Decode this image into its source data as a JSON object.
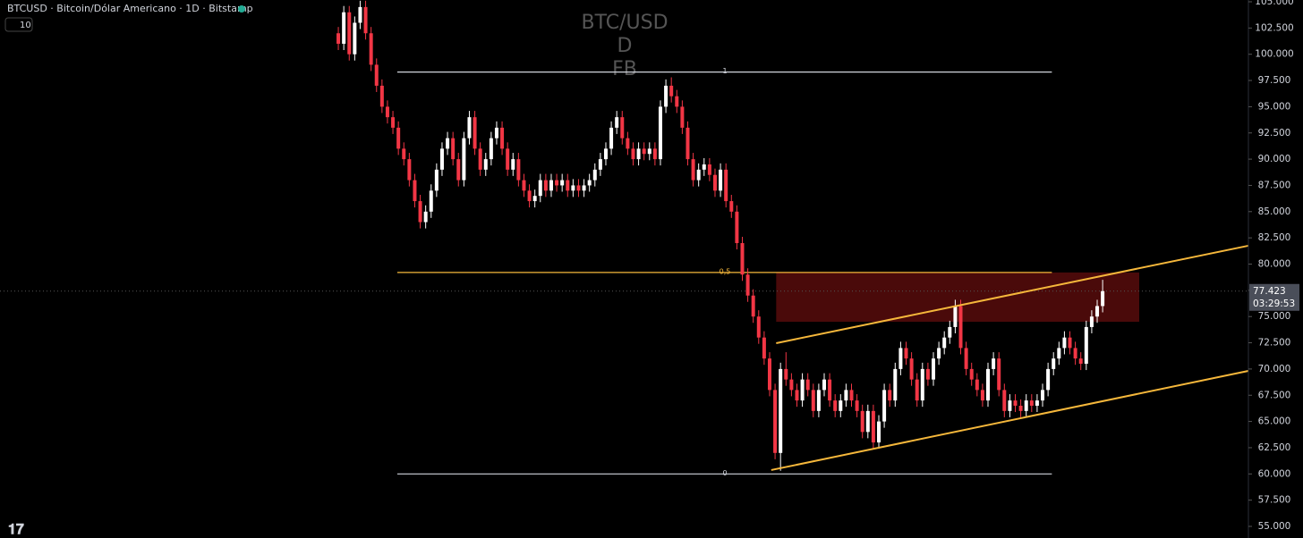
{
  "chart_data": {
    "type": "candlestick",
    "title": "BTCUSD · Bitcoin/Dólar Americano · 1D · Bitstamp",
    "indicator": "10",
    "watermark": [
      "BTC/USD",
      "D",
      "FB"
    ],
    "up_color": "#ffffff",
    "down_color": "#f23645",
    "xlim": [
      -0.5,
      166.7
    ],
    "ylim": [
      55000,
      105000
    ],
    "yticks": [
      {
        "value": 105000,
        "label": "105.000"
      },
      {
        "value": 102500,
        "label": "102.500"
      },
      {
        "value": 100000,
        "label": "100.000"
      },
      {
        "value": 97500,
        "label": "97.500"
      },
      {
        "value": 95000,
        "label": "95.000"
      },
      {
        "value": 92500,
        "label": "92.500"
      },
      {
        "value": 90000,
        "label": "90.000"
      },
      {
        "value": 87500,
        "label": "87.500"
      },
      {
        "value": 85000,
        "label": "85.000"
      },
      {
        "value": 82500,
        "label": "82.500"
      },
      {
        "value": 80000,
        "label": "80.000"
      },
      {
        "value": 77500,
        "label": "77.500"
      },
      {
        "value": 75000,
        "label": "75.000"
      },
      {
        "value": 72500,
        "label": "72.500"
      },
      {
        "value": 70000,
        "label": "70.000"
      },
      {
        "value": 67500,
        "label": "67.500"
      },
      {
        "value": 65000,
        "label": "65.000"
      },
      {
        "value": 62500,
        "label": "62.500"
      },
      {
        "value": 60000,
        "label": "60.000"
      },
      {
        "value": 57500,
        "label": "57.500"
      },
      {
        "value": 55000,
        "label": "55.000"
      }
    ],
    "candles": [
      [
        102000,
        102600,
        100400,
        101000
      ],
      [
        101000,
        104600,
        100400,
        104000
      ],
      [
        104000,
        104600,
        99400,
        100000
      ],
      [
        100000,
        103600,
        99400,
        103000
      ],
      [
        103000,
        105100,
        102400,
        104500
      ],
      [
        104500,
        105100,
        101400,
        102000
      ],
      [
        102000,
        102600,
        98400,
        99000
      ],
      [
        99000,
        99600,
        96400,
        97000
      ],
      [
        97000,
        97600,
        94400,
        95000
      ],
      [
        95000,
        95600,
        93400,
        94000
      ],
      [
        94000,
        94600,
        92400,
        93000
      ],
      [
        93000,
        93600,
        90400,
        91000
      ],
      [
        91000,
        91600,
        89400,
        90000
      ],
      [
        90000,
        90600,
        87400,
        88000
      ],
      [
        88000,
        88600,
        85400,
        86000
      ],
      [
        86000,
        86600,
        83400,
        84000
      ],
      [
        84000,
        85600,
        83400,
        85000
      ],
      [
        85000,
        87600,
        84400,
        87000
      ],
      [
        87000,
        89600,
        86400,
        89000
      ],
      [
        89000,
        91600,
        88400,
        91000
      ],
      [
        91000,
        92600,
        90400,
        92000
      ],
      [
        92000,
        92600,
        89400,
        90000
      ],
      [
        90000,
        90600,
        87400,
        88000
      ],
      [
        88000,
        92600,
        87400,
        92000
      ],
      [
        92000,
        94600,
        91400,
        94000
      ],
      [
        94000,
        94600,
        90400,
        91000
      ],
      [
        91000,
        91600,
        88400,
        89000
      ],
      [
        89000,
        90600,
        88400,
        90000
      ],
      [
        90000,
        92600,
        89400,
        92000
      ],
      [
        92000,
        93600,
        91400,
        93000
      ],
      [
        93000,
        93600,
        90400,
        91000
      ],
      [
        91000,
        91600,
        88400,
        89000
      ],
      [
        89000,
        90600,
        88400,
        90000
      ],
      [
        90000,
        90600,
        87400,
        88000
      ],
      [
        88000,
        88600,
        86400,
        87000
      ],
      [
        87000,
        87600,
        85400,
        86000
      ],
      [
        86000,
        87100,
        85400,
        86500
      ],
      [
        86500,
        88600,
        85900,
        88000
      ],
      [
        88000,
        88600,
        86400,
        87000
      ],
      [
        87000,
        88600,
        86400,
        88000
      ],
      [
        88000,
        88600,
        86900,
        87500
      ],
      [
        87500,
        88600,
        86900,
        88000
      ],
      [
        88000,
        88600,
        86400,
        87000
      ],
      [
        87000,
        88100,
        86400,
        87500
      ],
      [
        87500,
        88100,
        86400,
        87000
      ],
      [
        87000,
        88100,
        86400,
        87500
      ],
      [
        87500,
        88600,
        86900,
        88000
      ],
      [
        88000,
        89600,
        87400,
        89000
      ],
      [
        89000,
        90600,
        88400,
        90000
      ],
      [
        90000,
        91600,
        89400,
        91000
      ],
      [
        91000,
        93600,
        90400,
        93000
      ],
      [
        93000,
        94600,
        92400,
        94000
      ],
      [
        94000,
        94600,
        91400,
        92000
      ],
      [
        92000,
        92600,
        90400,
        91000
      ],
      [
        91000,
        91600,
        89400,
        90000
      ],
      [
        90000,
        91600,
        89400,
        91000
      ],
      [
        91000,
        91600,
        89900,
        90500
      ],
      [
        90500,
        91600,
        89900,
        91000
      ],
      [
        91000,
        91600,
        89400,
        90000
      ],
      [
        90000,
        95600,
        89400,
        95000
      ],
      [
        95000,
        97600,
        94400,
        97000
      ],
      [
        97000,
        97800,
        95400,
        96000
      ],
      [
        96000,
        96600,
        94400,
        95000
      ],
      [
        95000,
        95600,
        92400,
        93000
      ],
      [
        93000,
        93600,
        89400,
        90000
      ],
      [
        90000,
        90600,
        87400,
        88000
      ],
      [
        88000,
        89600,
        87400,
        89000
      ],
      [
        89000,
        90100,
        88400,
        89500
      ],
      [
        89500,
        90100,
        87900,
        88500
      ],
      [
        88500,
        89100,
        86400,
        87000
      ],
      [
        87000,
        89600,
        86400,
        89000
      ],
      [
        89000,
        89600,
        85400,
        86000
      ],
      [
        86000,
        86600,
        84400,
        85000
      ],
      [
        85000,
        85600,
        81400,
        82000
      ],
      [
        82000,
        82600,
        78400,
        79000
      ],
      [
        79000,
        79600,
        76400,
        77000
      ],
      [
        77000,
        77600,
        74400,
        75000
      ],
      [
        75000,
        75600,
        72400,
        73000
      ],
      [
        73000,
        73600,
        70400,
        71000
      ],
      [
        71000,
        71600,
        67400,
        68000
      ],
      [
        68000,
        68600,
        61400,
        62000
      ],
      [
        62000,
        70600,
        60300,
        70000
      ],
      [
        70000,
        71600,
        68400,
        69000
      ],
      [
        69000,
        69600,
        67400,
        68000
      ],
      [
        68000,
        68600,
        66400,
        67000
      ],
      [
        67000,
        69600,
        66400,
        69000
      ],
      [
        69000,
        69600,
        67400,
        68000
      ],
      [
        68000,
        68600,
        65400,
        66000
      ],
      [
        66000,
        68600,
        65400,
        68000
      ],
      [
        68000,
        69600,
        67400,
        69000
      ],
      [
        69000,
        69600,
        66400,
        67000
      ],
      [
        67000,
        67600,
        65400,
        66000
      ],
      [
        66000,
        67600,
        65400,
        67000
      ],
      [
        67000,
        68600,
        66400,
        68000
      ],
      [
        68000,
        68600,
        66400,
        67000
      ],
      [
        67000,
        67600,
        65400,
        66000
      ],
      [
        66000,
        66600,
        63400,
        64000
      ],
      [
        64000,
        66600,
        63400,
        66000
      ],
      [
        66000,
        66600,
        62400,
        63000
      ],
      [
        63000,
        65600,
        62400,
        65000
      ],
      [
        65000,
        68600,
        64400,
        68000
      ],
      [
        68000,
        68600,
        66400,
        67000
      ],
      [
        67000,
        70600,
        66400,
        70000
      ],
      [
        70000,
        72600,
        69400,
        72000
      ],
      [
        72000,
        72600,
        70400,
        71000
      ],
      [
        71000,
        71600,
        68400,
        69000
      ],
      [
        69000,
        69600,
        66400,
        67000
      ],
      [
        67000,
        70600,
        66400,
        70000
      ],
      [
        70000,
        70600,
        68400,
        69000
      ],
      [
        69000,
        71600,
        68400,
        71000
      ],
      [
        71000,
        72600,
        70400,
        72000
      ],
      [
        72000,
        73600,
        71400,
        73000
      ],
      [
        73000,
        74600,
        72400,
        74000
      ],
      [
        74000,
        76600,
        73400,
        76000
      ],
      [
        76000,
        76600,
        71400,
        72000
      ],
      [
        72000,
        72600,
        69400,
        70000
      ],
      [
        70000,
        70600,
        68400,
        69000
      ],
      [
        69000,
        69600,
        67400,
        68000
      ],
      [
        68000,
        68600,
        66400,
        67000
      ],
      [
        67000,
        70600,
        66400,
        70000
      ],
      [
        70000,
        71600,
        69400,
        71000
      ],
      [
        71000,
        71600,
        67400,
        68000
      ],
      [
        68000,
        68600,
        65400,
        66000
      ],
      [
        66000,
        67600,
        65400,
        67000
      ],
      [
        67000,
        67600,
        65900,
        66500
      ],
      [
        66500,
        67100,
        65400,
        66000
      ],
      [
        66000,
        67600,
        65400,
        67000
      ],
      [
        67000,
        67600,
        65900,
        66500
      ],
      [
        66500,
        67600,
        65900,
        67000
      ],
      [
        67000,
        68600,
        66400,
        68000
      ],
      [
        68000,
        70600,
        67400,
        70000
      ],
      [
        70000,
        71600,
        69400,
        71000
      ],
      [
        71000,
        72600,
        70400,
        72000
      ],
      [
        72000,
        73600,
        71400,
        73000
      ],
      [
        73000,
        73600,
        71400,
        72000
      ],
      [
        72000,
        72600,
        70400,
        71000
      ],
      [
        71000,
        71600,
        69900,
        70500
      ],
      [
        70500,
        74600,
        69900,
        74000
      ],
      [
        74000,
        75600,
        73400,
        75000
      ],
      [
        75000,
        76600,
        74400,
        76000
      ],
      [
        76000,
        78500,
        75400,
        77423
      ]
    ],
    "fib": {
      "x": [
        10.8,
        130.7
      ],
      "levels": [
        {
          "value": 98300,
          "label": "1",
          "color": "#d1d4dc"
        },
        {
          "value": 79200,
          "label": "0,5",
          "color": "#f5b73b"
        },
        {
          "value": 60000,
          "label": "0",
          "color": "#d1d4dc"
        }
      ]
    },
    "zone": {
      "x": [
        80.2,
        146.7
      ],
      "y": [
        74500,
        79200
      ],
      "color": "#4a0a0a"
    },
    "channel": {
      "color": "#f5b73b",
      "upper": {
        "x": [
          80.2,
          166.7
        ],
        "y": [
          72460,
          81750
        ]
      },
      "lower": {
        "x": [
          79.3,
          166.7
        ],
        "y": [
          60370,
          69820
        ]
      }
    },
    "price_tag": {
      "value": 77423,
      "label": "77.423",
      "countdown": "03:29:53"
    }
  }
}
